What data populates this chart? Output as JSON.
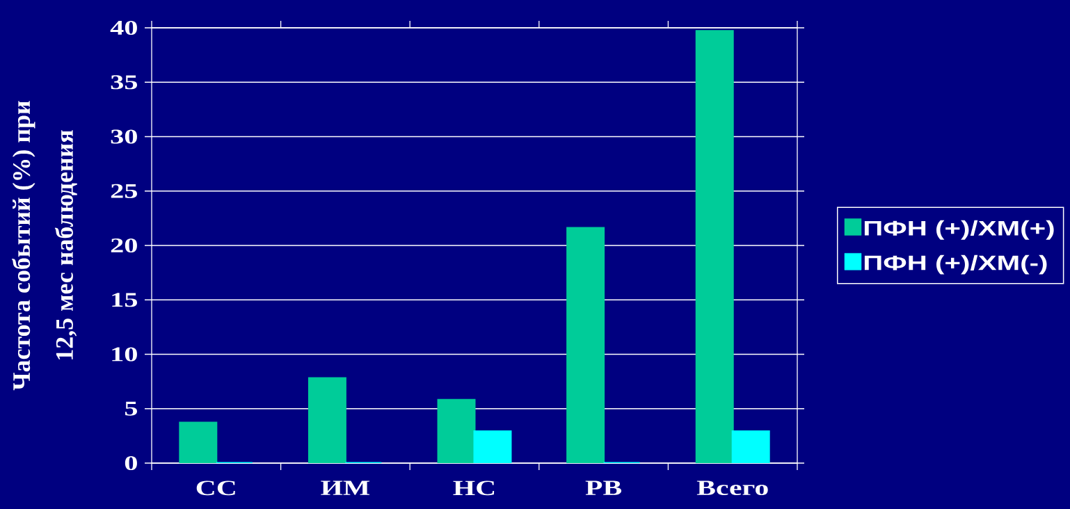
{
  "chart_data": {
    "type": "bar",
    "ylabel": "Частота событий (%) при 12,5 мес наблюдения",
    "categories": [
      "СС",
      "ИМ",
      "НС",
      "РВ",
      "Всего"
    ],
    "series": [
      {
        "name": "ПФН (+)/ХМ(+)",
        "color": "#00cc99",
        "values": [
          3.7,
          7.8,
          5.8,
          21.6,
          39.7
        ]
      },
      {
        "name": "ПФН (+)/ХМ(-)",
        "color": "#00ffff",
        "values": [
          0,
          0,
          2.9,
          0,
          2.9
        ]
      }
    ],
    "ylim": [
      0,
      40
    ],
    "yticks": [
      0,
      5,
      10,
      15,
      20,
      25,
      30,
      35,
      40
    ],
    "grid": "y",
    "legend": "right"
  }
}
